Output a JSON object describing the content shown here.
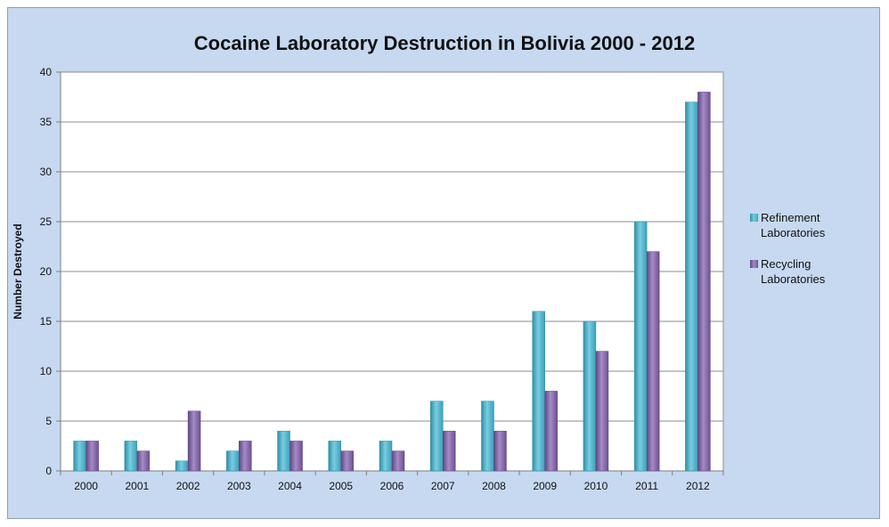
{
  "chart_data": {
    "type": "bar",
    "title": "Cocaine Laboratory Destruction in Bolivia 2000 - 2012",
    "xlabel": "",
    "ylabel": "Number Destroyed",
    "ylim": [
      0,
      40
    ],
    "yticks": [
      0,
      5,
      10,
      15,
      20,
      25,
      30,
      35,
      40
    ],
    "categories": [
      "2000",
      "2001",
      "2002",
      "2003",
      "2004",
      "2005",
      "2006",
      "2007",
      "2008",
      "2009",
      "2010",
      "2011",
      "2012"
    ],
    "series": [
      {
        "name": "Refinement Laboratories",
        "legend_lines": [
          "Refinement",
          "Laboratories"
        ],
        "color": "#4bacc6",
        "values": [
          3,
          3,
          1,
          2,
          4,
          3,
          3,
          7,
          7,
          16,
          15,
          25,
          37
        ]
      },
      {
        "name": "Recycling Laboratories",
        "legend_lines": [
          "Recycling",
          "Laboratories"
        ],
        "color": "#8064a2",
        "values": [
          3,
          2,
          6,
          3,
          3,
          2,
          2,
          4,
          4,
          8,
          12,
          22,
          38
        ]
      }
    ],
    "grid": true,
    "legend_position": "right",
    "background_color": "#c6d9f0",
    "plot_background_color": "#ffffff"
  }
}
